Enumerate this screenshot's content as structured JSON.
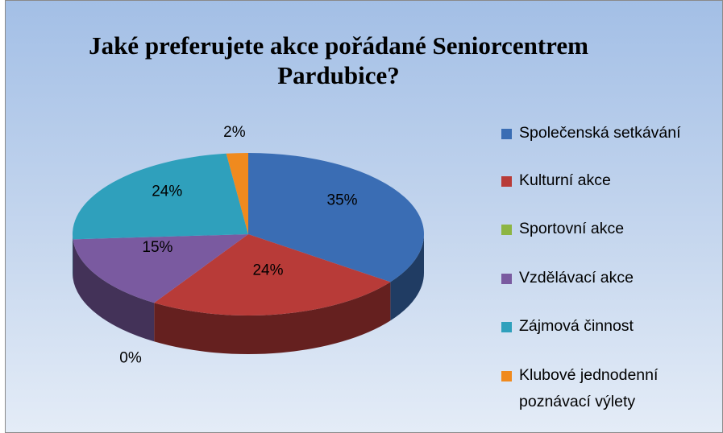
{
  "chart_data": {
    "type": "pie",
    "title": "Jaké preferujete akce pořádané Seniorcentrem Pardubice?",
    "categories": [
      "Společenská setkávání",
      "Kulturní akce",
      "Sportovní akce",
      "Vzdělávací akce",
      "Zájmová činnost",
      "Klubové jednodenní poznávací výlety"
    ],
    "values": [
      35,
      24,
      0,
      15,
      24,
      2
    ],
    "value_labels": [
      "35%",
      "24%",
      "0%",
      "15%",
      "24%",
      "2%"
    ],
    "colors": [
      "#3a6db4",
      "#b83b38",
      "#8db543",
      "#7a5aa0",
      "#2fa0bc",
      "#f08a1e"
    ],
    "legend": "right"
  }
}
